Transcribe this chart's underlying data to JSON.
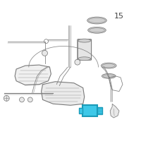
{
  "background_color": "#ffffff",
  "line_color": "#7a7a7a",
  "light_fill": "#e8e8e8",
  "mid_fill": "#d0d0d0",
  "highlight_color": "#3ec8e8",
  "highlight_stroke": "#1a9ab8",
  "text_color": "#444444",
  "number_label": "15",
  "figsize": [
    2.0,
    2.0
  ],
  "dpi": 100
}
